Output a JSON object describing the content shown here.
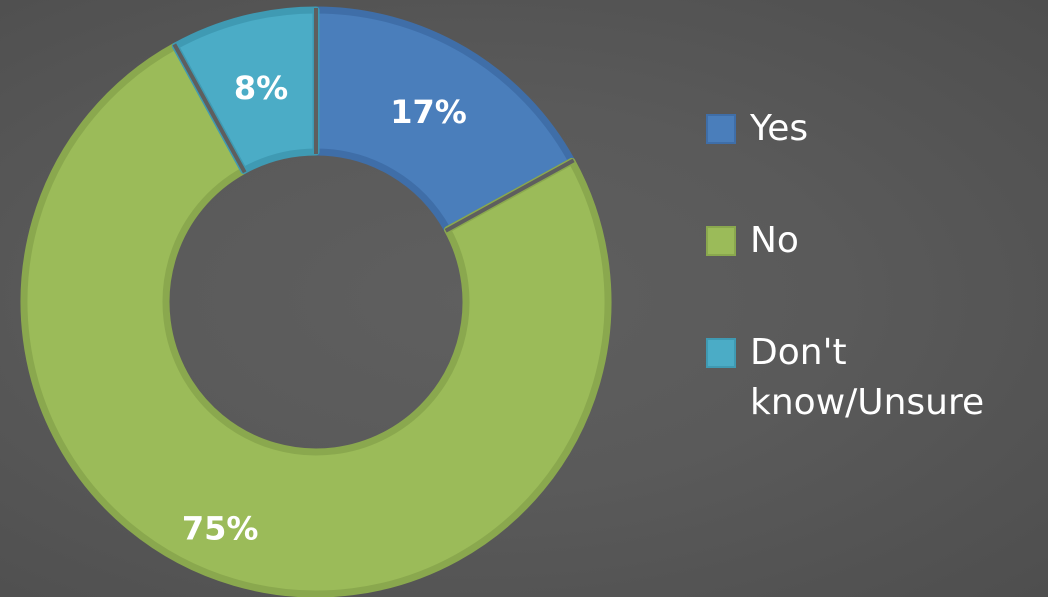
{
  "chart_data": {
    "type": "pie",
    "variant": "donut",
    "title": "",
    "categories": [
      "Yes",
      "No",
      "Don't know/Unsure"
    ],
    "values": [
      17,
      75,
      8
    ],
    "labels": [
      "17%",
      "75%",
      "8%"
    ],
    "colors": [
      "#4a7ebb",
      "#9bbb59",
      "#4bacc6"
    ],
    "border_colors": [
      "#3f6ea8",
      "#8aa84e",
      "#3f9ab3"
    ],
    "legend_position": "right",
    "start_angle": "12 o'clock",
    "direction": "clockwise"
  }
}
